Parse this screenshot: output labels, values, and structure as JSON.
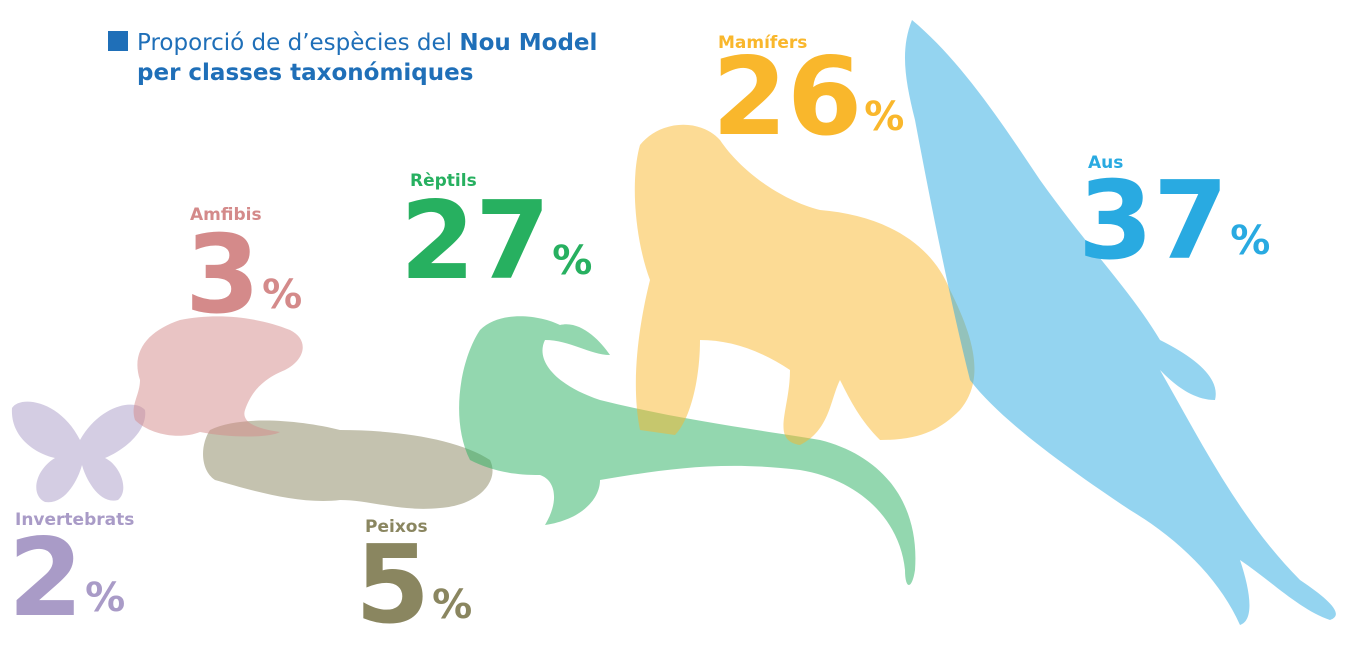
{
  "chart_data": {
    "type": "pictogram",
    "title": {
      "lead": "Proporció de d’espècies del",
      "emphasis": "Nou Model",
      "line2": "per classes taxonómiques"
    },
    "unit": "%",
    "categories": [
      "Invertebrats",
      "Peixos",
      "Amfibis",
      "Rèptils",
      "Mamífers",
      "Aus"
    ],
    "values": [
      2,
      5,
      3,
      27,
      26,
      37
    ],
    "colors": [
      "#a99bc7",
      "#8a8660",
      "#d48a8a",
      "#27b060",
      "#f9b72c",
      "#29aae1"
    ]
  }
}
